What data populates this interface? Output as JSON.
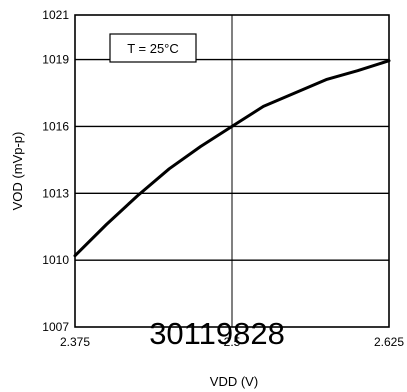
{
  "chart_data": {
    "type": "line",
    "xlabel": "VDD (V)",
    "ylabel": "VOD (mVp-p)",
    "xlim": [
      2.375,
      2.625
    ],
    "ylim": [
      1007,
      1021
    ],
    "x_ticks": [
      "2.375",
      "2.5",
      "2.625"
    ],
    "y_ticks": [
      "1007",
      "1010",
      "1013",
      "1016",
      "1019",
      "1021"
    ],
    "grid": true,
    "annotation": "T = 25°C",
    "figure_id": "30119828",
    "series": [
      {
        "x": [
          2.375,
          2.4,
          2.425,
          2.45,
          2.475,
          2.5,
          2.525,
          2.55,
          2.575,
          2.6,
          2.625
        ],
        "y": [
          1010.2,
          1011.6,
          1012.9,
          1014.1,
          1015.1,
          1016.0,
          1016.9,
          1017.5,
          1018.1,
          1018.5,
          1018.95
        ]
      }
    ]
  }
}
